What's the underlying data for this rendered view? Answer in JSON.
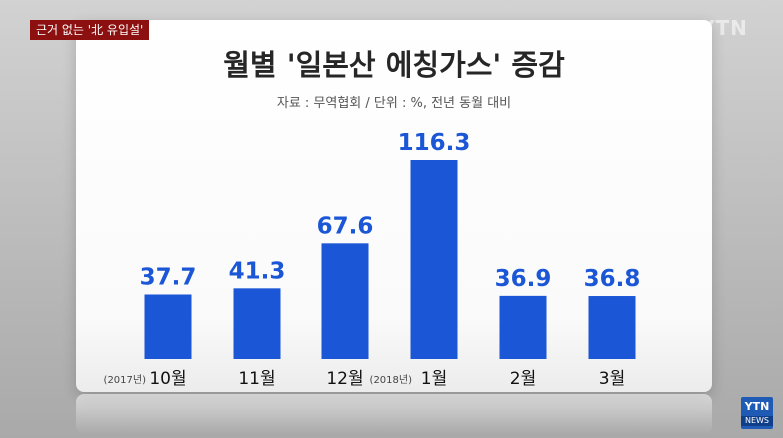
{
  "news_tag": "근거 없는 '北 유입설'",
  "brand_watermark": "YTN",
  "logo": {
    "top": "YTN",
    "bottom": "NEWS"
  },
  "colors": {
    "bar": "#1a56d6",
    "label": "#1a56d6",
    "tag": "#8c1010"
  },
  "chart_data": {
    "type": "bar",
    "title": "월별 '일본산 에칭가스' 증감",
    "subtitle": "자료 : 무역협회 / 단위 : %, 전년 동월 대비",
    "categories": [
      "10월",
      "11월",
      "12월",
      "1월",
      "2월",
      "3월"
    ],
    "category_notes": [
      "(2017년)",
      "",
      "",
      "(2018년)",
      "",
      ""
    ],
    "values": [
      37.7,
      41.3,
      67.6,
      116.3,
      36.9,
      36.8
    ],
    "value_labels": [
      "37.7",
      "41.3",
      "67.6",
      "116.3",
      "36.9",
      "36.8"
    ],
    "ylim": [
      0,
      120
    ],
    "grid": false,
    "legend": "none"
  }
}
